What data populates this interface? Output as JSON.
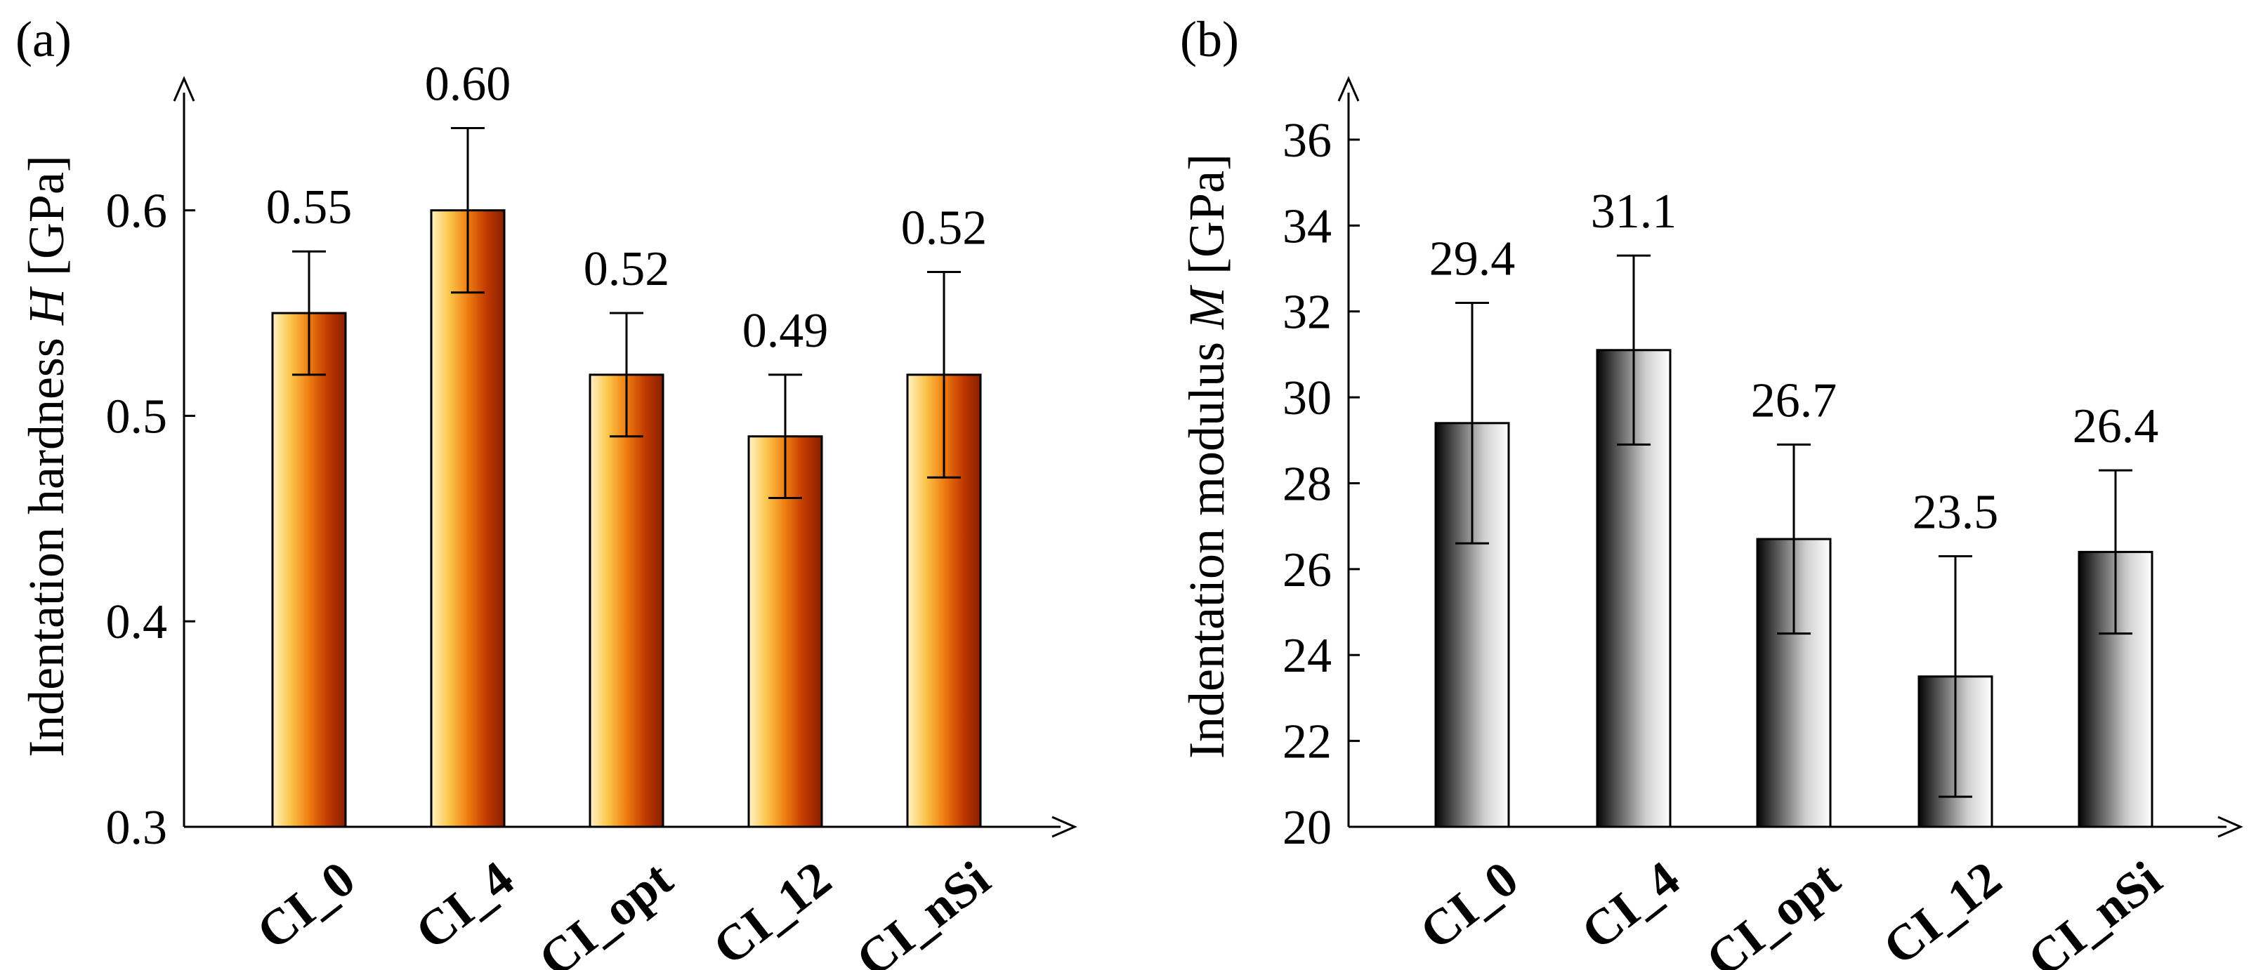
{
  "chart_data": [
    {
      "type": "bar",
      "panel": "(a)",
      "categories": [
        "CI_0",
        "CI_4",
        "CI_opt",
        "CI_12",
        "CI_nSi"
      ],
      "values": [
        0.55,
        0.6,
        0.52,
        0.49,
        0.52
      ],
      "value_labels": [
        "0.55",
        "0.60",
        "0.52",
        "0.49",
        "0.52"
      ],
      "errors": [
        0.03,
        0.04,
        0.03,
        0.03,
        0.05
      ],
      "ylabel_parts": [
        "Indentation hardness ",
        "H",
        " [GPa]"
      ],
      "ylim": [
        0.3,
        0.66
      ],
      "yticks": [
        0.3,
        0.4,
        0.5,
        0.6
      ],
      "ytick_labels": [
        "0.3",
        "0.4",
        "0.5",
        "0.6"
      ],
      "colors": [
        "#fff2c4",
        "#fbc54a",
        "#ef7d10",
        "#c23a00",
        "#8a1f00"
      ]
    },
    {
      "type": "bar",
      "panel": "(b)",
      "categories": [
        "CI_0",
        "CI_4",
        "CI_opt",
        "CI_12",
        "CI_nSi"
      ],
      "values": [
        29.4,
        31.1,
        26.7,
        23.5,
        26.4
      ],
      "value_labels": [
        "29.4",
        "31.1",
        "26.7",
        "23.5",
        "26.4"
      ],
      "errors": [
        2.8,
        2.2,
        2.2,
        2.8,
        1.9
      ],
      "ylabel_parts": [
        "Indentation modulus ",
        "M",
        " [GPa]"
      ],
      "ylim": [
        20,
        36.8
      ],
      "yticks": [
        20,
        22,
        24,
        26,
        28,
        30,
        32,
        34,
        36
      ],
      "ytick_labels": [
        "20",
        "22",
        "24",
        "26",
        "28",
        "30",
        "32",
        "34",
        "36"
      ],
      "colors": [
        "#050505",
        "#6a6a6a",
        "#cfcfcf",
        "#ffffff"
      ]
    }
  ]
}
